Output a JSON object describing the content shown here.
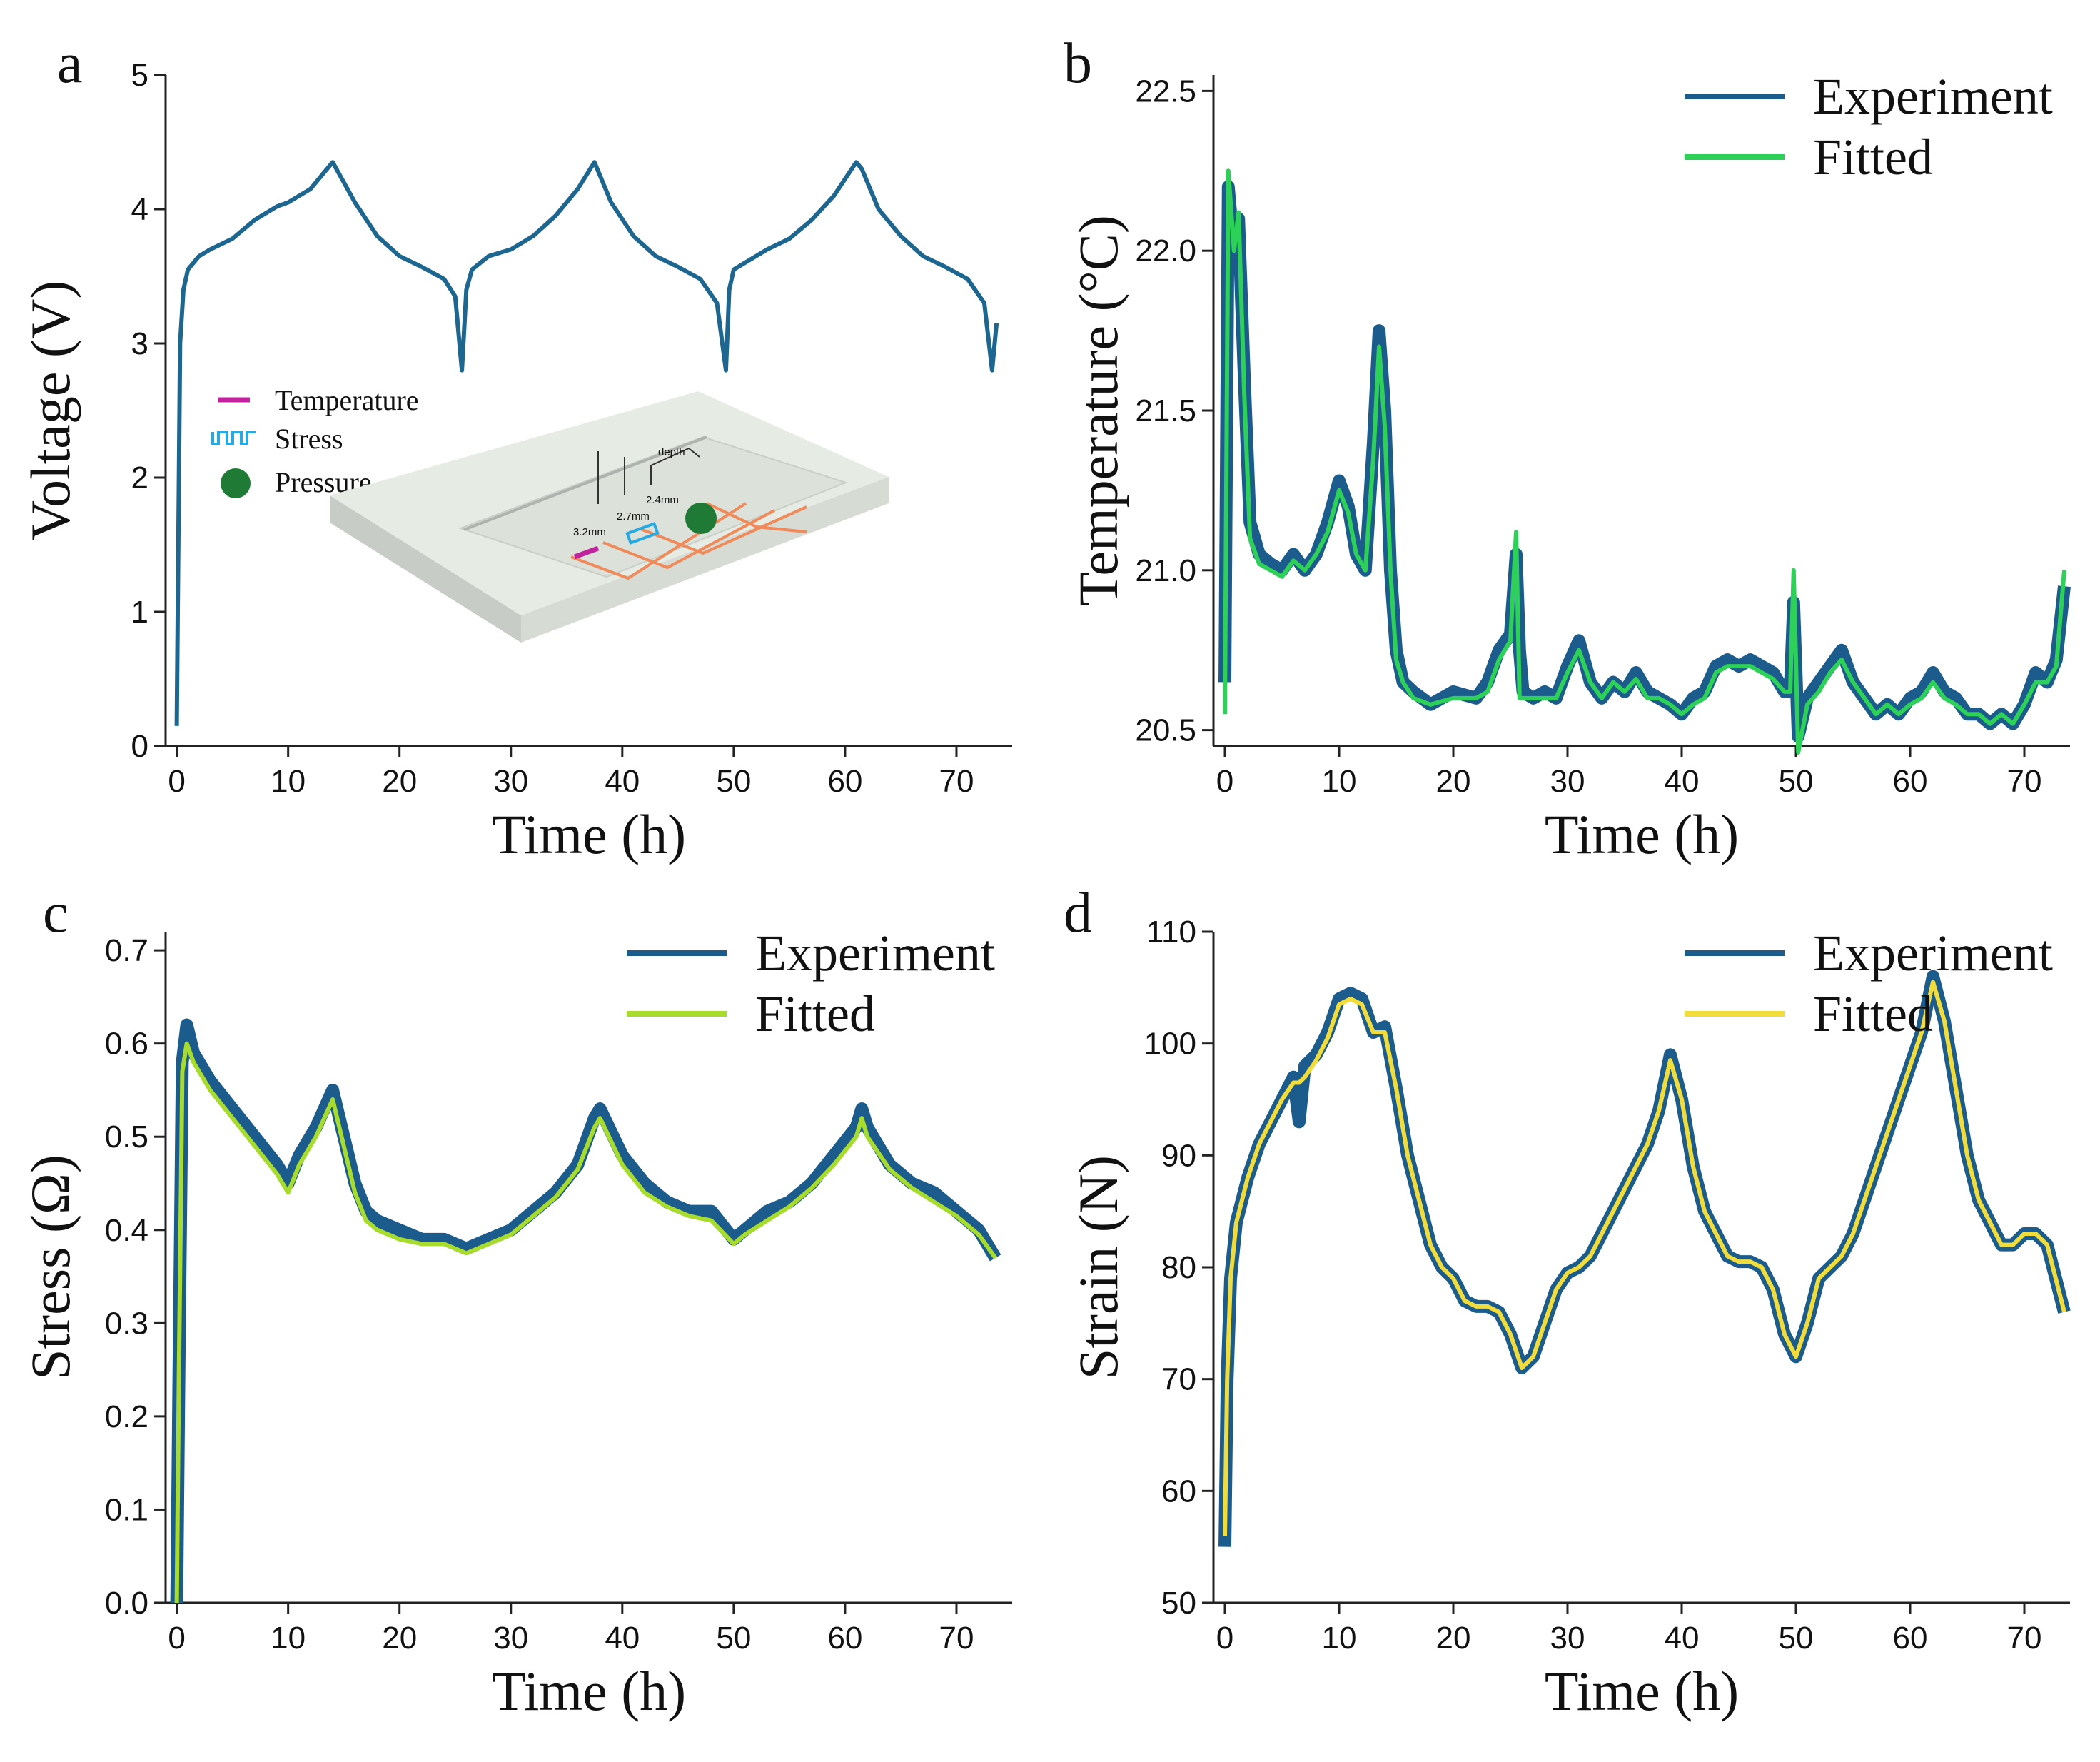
{
  "figure": {
    "colors": {
      "experiment": "#1b5c8c",
      "fitted_b": "#2ed158",
      "fitted_c": "#a8dc2c",
      "fitted_d": "#f2dc3a",
      "voltage": "#1d6690",
      "temperature_marker": "#c0239c",
      "stress_marker": "#27a9e1",
      "pressure_marker": "#1e7a35",
      "trace": "#f08a5a",
      "block_top": "#e6ebe4",
      "block_side": "#c7cdc6"
    }
  },
  "chart_data": [
    {
      "panel": "a",
      "type": "line",
      "xlabel": "Time (h)",
      "ylabel": "Voltage (V)",
      "xlim": [
        -1,
        75
      ],
      "ylim": [
        0,
        5
      ],
      "xticks": [
        0,
        10,
        20,
        30,
        40,
        50,
        60,
        70
      ],
      "yticks": [
        0,
        1,
        2,
        3,
        4,
        5
      ],
      "series": [
        {
          "name": "Voltage",
          "x": [
            0,
            0.3,
            0.6,
            1.0,
            2,
            3,
            5,
            7,
            9,
            10,
            12,
            14,
            16,
            18,
            20,
            22,
            24,
            25,
            25.6,
            26,
            26.5,
            28,
            30,
            32,
            34,
            36,
            37.5,
            39,
            41,
            43,
            45,
            47,
            48.5,
            49.3,
            49.6,
            50,
            51,
            53,
            55,
            57,
            59,
            61,
            61.5,
            63,
            65,
            67,
            69,
            71,
            72.5,
            73.2,
            73.6
          ],
          "values": [
            0.15,
            3.0,
            3.4,
            3.55,
            3.65,
            3.7,
            3.78,
            3.92,
            4.02,
            4.05,
            4.15,
            4.35,
            4.05,
            3.8,
            3.65,
            3.57,
            3.48,
            3.35,
            2.8,
            3.4,
            3.55,
            3.65,
            3.7,
            3.8,
            3.95,
            4.15,
            4.35,
            4.05,
            3.8,
            3.65,
            3.57,
            3.48,
            3.3,
            2.8,
            3.4,
            3.55,
            3.6,
            3.7,
            3.78,
            3.92,
            4.1,
            4.35,
            4.3,
            4.0,
            3.8,
            3.65,
            3.57,
            3.48,
            3.3,
            2.8,
            3.15
          ]
        }
      ],
      "inset_legend": [
        "Temperature",
        "Stress",
        "Pressure"
      ],
      "inset_dims": [
        "depth",
        "2.4mm",
        "2.7mm",
        "3.2mm"
      ]
    },
    {
      "panel": "b",
      "type": "line",
      "xlabel": "Time (h)",
      "ylabel": "Temperature (°C)",
      "xlim": [
        -1,
        74
      ],
      "ylim": [
        20.45,
        22.55
      ],
      "xticks": [
        0,
        10,
        20,
        30,
        40,
        50,
        60,
        70
      ],
      "yticks": [
        20.5,
        21.0,
        21.5,
        22.0,
        22.5
      ],
      "ytick_labels": [
        "20.5",
        "21.0",
        "21.5",
        "22.0",
        "22.5"
      ],
      "legend": [
        "Experiment",
        "Fitted"
      ],
      "x": [
        0,
        0.3,
        0.8,
        1.2,
        1.7,
        2.2,
        3,
        4,
        5,
        6,
        7,
        8,
        9,
        10,
        10.8,
        11.5,
        12.3,
        13,
        13.5,
        14,
        14.5,
        15,
        15.6,
        16.5,
        18,
        20,
        22,
        23,
        24,
        25,
        25.5,
        25.8,
        26.1,
        27,
        28,
        29,
        30,
        31,
        32,
        33,
        34,
        35,
        36,
        37,
        38,
        39,
        40,
        41,
        42,
        43,
        44,
        45,
        46,
        47,
        48,
        49,
        49.5,
        49.8,
        50.2,
        51,
        52,
        53,
        54,
        55,
        56,
        57,
        58,
        59,
        60,
        61,
        62,
        63,
        64,
        65,
        66,
        67,
        68,
        69,
        70,
        71,
        72,
        72.8,
        73.5
      ],
      "series": [
        {
          "name": "Experiment",
          "values": [
            20.65,
            22.2,
            22.0,
            22.1,
            21.6,
            21.15,
            21.05,
            21.02,
            21.0,
            21.05,
            21.0,
            21.05,
            21.15,
            21.28,
            21.2,
            21.05,
            21.0,
            21.4,
            21.75,
            21.5,
            21.0,
            20.75,
            20.65,
            20.62,
            20.58,
            20.62,
            20.6,
            20.65,
            20.75,
            20.8,
            21.05,
            20.75,
            20.62,
            20.6,
            20.62,
            20.6,
            20.7,
            20.78,
            20.65,
            20.6,
            20.65,
            20.62,
            20.68,
            20.62,
            20.6,
            20.58,
            20.55,
            20.6,
            20.62,
            20.7,
            20.72,
            20.7,
            20.72,
            20.7,
            20.68,
            20.62,
            20.62,
            20.9,
            20.48,
            20.6,
            20.65,
            20.7,
            20.75,
            20.65,
            20.6,
            20.55,
            20.58,
            20.55,
            20.6,
            20.62,
            20.68,
            20.62,
            20.6,
            20.55,
            20.55,
            20.52,
            20.55,
            20.52,
            20.58,
            20.68,
            20.65,
            20.72,
            20.95
          ]
        },
        {
          "name": "Fitted",
          "values": [
            20.55,
            22.25,
            22.0,
            22.12,
            21.55,
            21.1,
            21.02,
            21.0,
            20.98,
            21.03,
            21.0,
            21.05,
            21.12,
            21.25,
            21.18,
            21.05,
            21.0,
            21.35,
            21.7,
            21.45,
            21.0,
            20.72,
            20.65,
            20.6,
            20.58,
            20.6,
            20.6,
            20.62,
            20.72,
            20.78,
            21.12,
            20.6,
            20.6,
            20.6,
            20.6,
            20.6,
            20.68,
            20.75,
            20.65,
            20.6,
            20.65,
            20.62,
            20.66,
            20.6,
            20.6,
            20.58,
            20.55,
            20.58,
            20.6,
            20.68,
            20.7,
            20.7,
            20.7,
            20.68,
            20.66,
            20.62,
            20.62,
            21.0,
            20.43,
            20.58,
            20.62,
            20.68,
            20.72,
            20.65,
            20.6,
            20.55,
            20.58,
            20.55,
            20.58,
            20.6,
            20.65,
            20.6,
            20.58,
            20.55,
            20.55,
            20.52,
            20.55,
            20.52,
            20.58,
            20.65,
            20.65,
            20.7,
            21.0
          ]
        }
      ]
    },
    {
      "panel": "c",
      "type": "line",
      "xlabel": "Time (h)",
      "ylabel": "Stress (Ω)",
      "xlim": [
        -1,
        75
      ],
      "ylim": [
        0,
        0.72
      ],
      "xticks": [
        0,
        10,
        20,
        30,
        40,
        50,
        60,
        70
      ],
      "yticks": [
        0.0,
        0.1,
        0.2,
        0.3,
        0.4,
        0.5,
        0.6,
        0.7
      ],
      "ytick_labels": [
        "0.0",
        "0.1",
        "0.2",
        "0.3",
        "0.4",
        "0.5",
        "0.6",
        "0.7"
      ],
      "legend": [
        "Experiment",
        "Fitted"
      ],
      "x": [
        0,
        0.2,
        0.5,
        0.9,
        1.5,
        3,
        5,
        7,
        9,
        10,
        11,
        12.5,
        14,
        15,
        16,
        17,
        18,
        20,
        22,
        24,
        26,
        28,
        30,
        32,
        34,
        36,
        37.5,
        38,
        40,
        42,
        44,
        46,
        48,
        50,
        51,
        53,
        55,
        57,
        59,
        61,
        61.5,
        62,
        64,
        66,
        68,
        70,
        72,
        73.5
      ],
      "series": [
        {
          "name": "Experiment",
          "values": [
            0.0,
            0.25,
            0.58,
            0.62,
            0.59,
            0.56,
            0.53,
            0.5,
            0.47,
            0.45,
            0.48,
            0.51,
            0.55,
            0.5,
            0.45,
            0.42,
            0.41,
            0.4,
            0.39,
            0.39,
            0.38,
            0.39,
            0.4,
            0.42,
            0.44,
            0.47,
            0.52,
            0.53,
            0.48,
            0.45,
            0.43,
            0.42,
            0.42,
            0.39,
            0.4,
            0.42,
            0.43,
            0.45,
            0.48,
            0.51,
            0.53,
            0.51,
            0.47,
            0.45,
            0.44,
            0.42,
            0.4,
            0.37
          ]
        },
        {
          "name": "Fitted",
          "values": [
            0.0,
            0.25,
            0.57,
            0.6,
            0.58,
            0.55,
            0.52,
            0.49,
            0.46,
            0.44,
            0.47,
            0.5,
            0.54,
            0.49,
            0.44,
            0.41,
            0.4,
            0.39,
            0.385,
            0.385,
            0.375,
            0.385,
            0.395,
            0.415,
            0.435,
            0.465,
            0.51,
            0.52,
            0.47,
            0.44,
            0.425,
            0.415,
            0.41,
            0.385,
            0.395,
            0.41,
            0.425,
            0.445,
            0.47,
            0.5,
            0.52,
            0.5,
            0.465,
            0.445,
            0.43,
            0.415,
            0.395,
            0.37
          ]
        }
      ]
    },
    {
      "panel": "d",
      "type": "line",
      "xlabel": "Time (h)",
      "ylabel": "Strain (N)",
      "xlim": [
        -1,
        74
      ],
      "ylim": [
        50,
        110
      ],
      "xticks": [
        0,
        10,
        20,
        30,
        40,
        50,
        60,
        70
      ],
      "yticks": [
        50,
        60,
        70,
        80,
        90,
        100,
        110
      ],
      "legend": [
        "Experiment",
        "Fitted"
      ],
      "x": [
        0,
        0.2,
        0.5,
        1,
        2,
        3,
        4,
        5,
        6,
        6.5,
        7,
        8,
        9,
        10,
        11,
        12,
        13,
        14,
        15,
        16,
        17,
        18,
        19,
        20,
        21,
        22,
        23,
        24,
        25,
        26,
        27,
        28,
        29,
        30,
        31,
        32,
        33,
        34,
        35,
        36,
        37,
        38,
        39,
        40,
        41,
        42,
        43,
        44,
        45,
        46,
        47,
        48,
        49,
        50,
        51,
        52,
        53,
        54,
        55,
        56,
        57,
        58,
        59,
        60,
        61,
        62,
        63,
        64,
        65,
        66,
        67,
        68,
        69,
        70,
        71,
        72,
        73,
        73.5
      ],
      "series": [
        {
          "name": "Experiment",
          "values": [
            55,
            70,
            79,
            84,
            88,
            91,
            93,
            95,
            97,
            93,
            98,
            99,
            101,
            104,
            104.5,
            104,
            101,
            101.5,
            96,
            90,
            86,
            82,
            80,
            79,
            77,
            76.5,
            76.5,
            76,
            74,
            71,
            72,
            75,
            78,
            79.5,
            80,
            81,
            83,
            85,
            87,
            89,
            91,
            94,
            99,
            95,
            89,
            85,
            83,
            81,
            80.5,
            80.5,
            80,
            78,
            74,
            72,
            75,
            79,
            80,
            81,
            83,
            86,
            89,
            92,
            95,
            98,
            101,
            106,
            102,
            96,
            90,
            86,
            84,
            82,
            82,
            83,
            83,
            82,
            78,
            76
          ]
        },
        {
          "name": "Fitted",
          "values": [
            56,
            70,
            79,
            84,
            88,
            91,
            93,
            95,
            96.5,
            96.5,
            97,
            98.5,
            100.5,
            103.5,
            104,
            103.5,
            101,
            101,
            96,
            90,
            86,
            82,
            80,
            79,
            77,
            76.5,
            76.5,
            76,
            74,
            71,
            72,
            75,
            78,
            79.5,
            80,
            81,
            83,
            85,
            87,
            89,
            91,
            94,
            98.5,
            95,
            89,
            85,
            83,
            81,
            80.5,
            80.5,
            80,
            78,
            74,
            72,
            75,
            79,
            80,
            81,
            83,
            86,
            89,
            92,
            95,
            98,
            101,
            105.5,
            102,
            96,
            90,
            86,
            84,
            82,
            82,
            83,
            83,
            82,
            78,
            76
          ]
        }
      ]
    }
  ]
}
